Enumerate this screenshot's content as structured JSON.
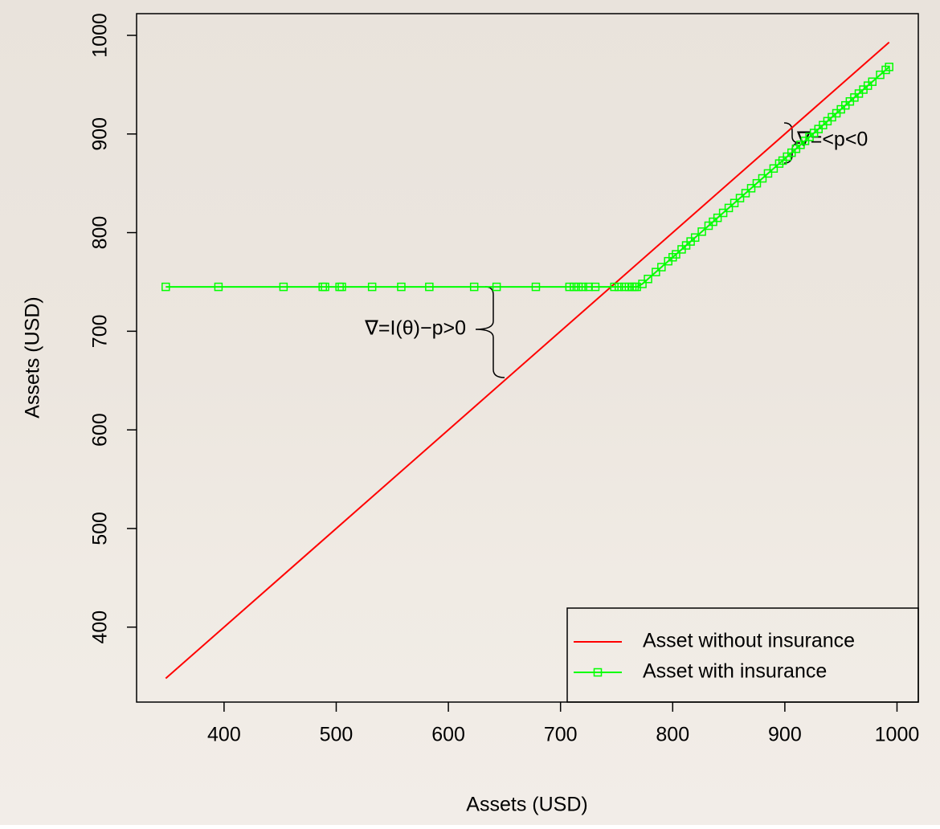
{
  "chart_data": {
    "type": "line",
    "x_label": "Assets (USD)",
    "y_label": "Assets (USD)",
    "xlim": [
      322,
      1019
    ],
    "ylim": [
      324,
      1022
    ],
    "xticks": [
      400,
      500,
      600,
      700,
      800,
      900,
      1000
    ],
    "yticks": [
      400,
      500,
      600,
      700,
      800,
      900,
      1000
    ],
    "legend": "bottom-right",
    "series": [
      {
        "name": "Asset without insurance",
        "color": "#ff0000",
        "marker": "none",
        "x": [
          348,
          993
        ],
        "values": [
          348,
          993
        ]
      },
      {
        "name": "Asset with insurance",
        "color": "#00ff00",
        "marker": "square",
        "x": [
          348,
          395,
          453,
          488,
          490,
          503,
          505,
          532,
          558,
          583,
          623,
          643,
          678,
          708,
          712,
          716,
          720,
          725,
          731,
          748,
          752,
          757,
          761,
          764,
          766,
          768,
          773,
          778,
          785,
          790,
          796,
          800,
          803,
          808,
          812,
          816,
          820,
          826,
          832,
          836,
          840,
          845,
          850,
          855,
          860,
          865,
          870,
          875,
          880,
          885,
          890,
          895,
          898,
          902,
          906,
          910,
          914,
          918,
          922,
          926,
          930,
          934,
          938,
          942,
          946,
          950,
          954,
          958,
          962,
          966,
          970,
          974,
          978,
          985,
          990,
          993
        ],
        "values": [
          745,
          745,
          745,
          745,
          745,
          745,
          745,
          745,
          745,
          745,
          745,
          745,
          745,
          745,
          745,
          745,
          745,
          745,
          745,
          745,
          745,
          745,
          745,
          745,
          745,
          745,
          748,
          753,
          760,
          765,
          771,
          775,
          778,
          783,
          787,
          791,
          795,
          801,
          807,
          811,
          815,
          820,
          825,
          830,
          835,
          840,
          845,
          850,
          855,
          860,
          865,
          870,
          873,
          877,
          881,
          885,
          889,
          893,
          897,
          901,
          905,
          909,
          913,
          917,
          921,
          925,
          929,
          933,
          937,
          941,
          945,
          949,
          953,
          960,
          965,
          968
        ]
      }
    ],
    "annotations": [
      "∇=I(θ)−p>0",
      "∇=<p<0"
    ]
  }
}
